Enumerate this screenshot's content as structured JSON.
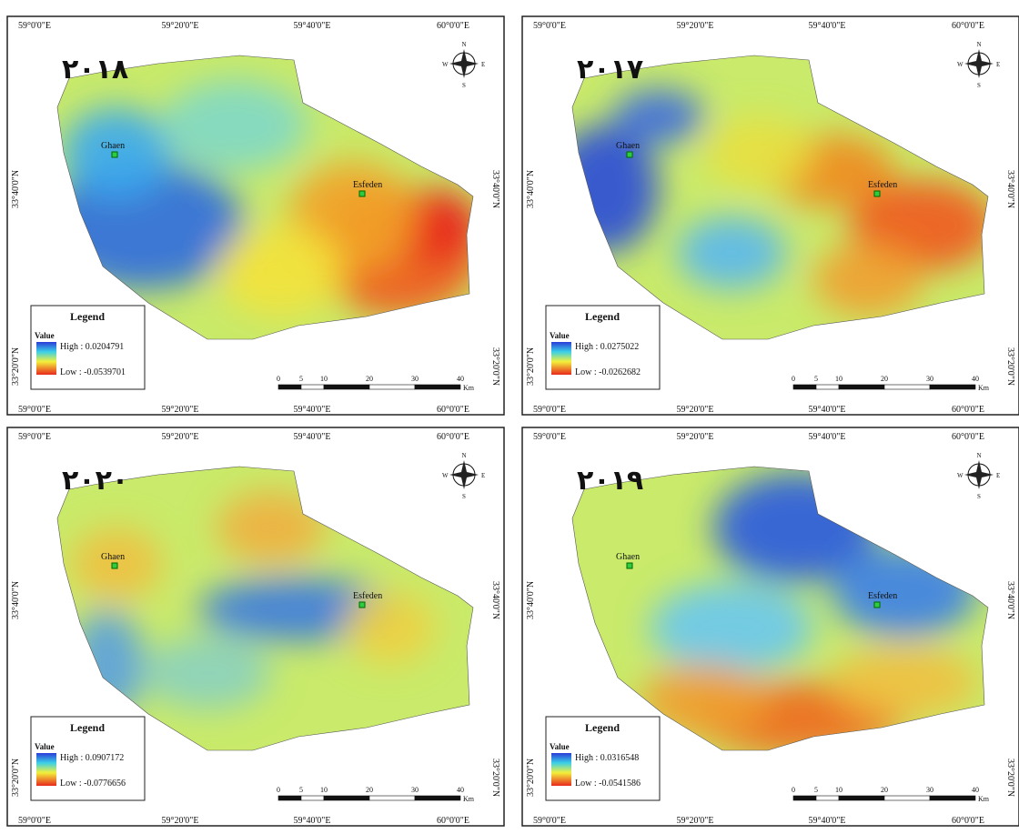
{
  "panels": [
    {
      "year": "۲۰۱۸",
      "legend_high": "High : 0.0204791",
      "legend_low": "Low : -0.0539701"
    },
    {
      "year": "۲۰۱۷",
      "legend_high": "High : 0.0275022",
      "legend_low": "Low : -0.0262682"
    },
    {
      "year": "۲۰۲۰",
      "legend_high": "High : 0.0907172",
      "legend_low": "Low : -0.0776656"
    },
    {
      "year": "۲۰۱۹",
      "legend_high": "High : 0.0316548",
      "legend_low": "Low : -0.0541586"
    }
  ],
  "graticule": {
    "longitudes": [
      "59°0'0\"E",
      "59°20'0\"E",
      "59°40'0\"E",
      "60°0'0\"E"
    ],
    "latitudes": [
      "33°40'0\"N",
      "33°20'0\"N"
    ]
  },
  "places": [
    "Ghaen",
    "Esfeden"
  ],
  "legend": {
    "title": "Legend",
    "field": "Value"
  },
  "scale_bar": {
    "labels": [
      "0",
      "5",
      "10",
      "20",
      "30",
      "40"
    ],
    "unit": "Km"
  },
  "compass": {
    "north": "N",
    "south": "S",
    "east": "E",
    "west": "W"
  }
}
